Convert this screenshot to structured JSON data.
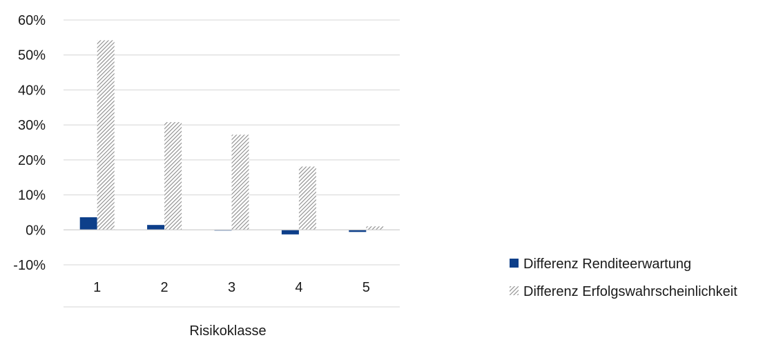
{
  "chart_data": {
    "type": "bar",
    "title": "",
    "xlabel": "Risikoklasse",
    "ylabel": "",
    "categories": [
      "1",
      "2",
      "3",
      "4",
      "5"
    ],
    "ylim": [
      -10,
      60
    ],
    "yticks": [
      -10,
      0,
      10,
      20,
      30,
      40,
      50,
      60
    ],
    "ytick_labels": [
      "-10%",
      "0%",
      "10%",
      "20%",
      "30%",
      "40%",
      "50%",
      "60%"
    ],
    "grid": true,
    "legend_position": "bottom-right",
    "series": [
      {
        "name": "Differenz Renditeerwartung",
        "values": [
          3.6,
          1.4,
          -0.2,
          -1.3,
          -0.6
        ],
        "color": "#0d3f8a",
        "style": "solid"
      },
      {
        "name": "Differenz Erfolgswahrscheinlichkeit",
        "values": [
          54.2,
          30.8,
          27.2,
          18.1,
          1.0
        ],
        "color": "#8a8a8a",
        "style": "diagonal-hatch"
      }
    ]
  }
}
